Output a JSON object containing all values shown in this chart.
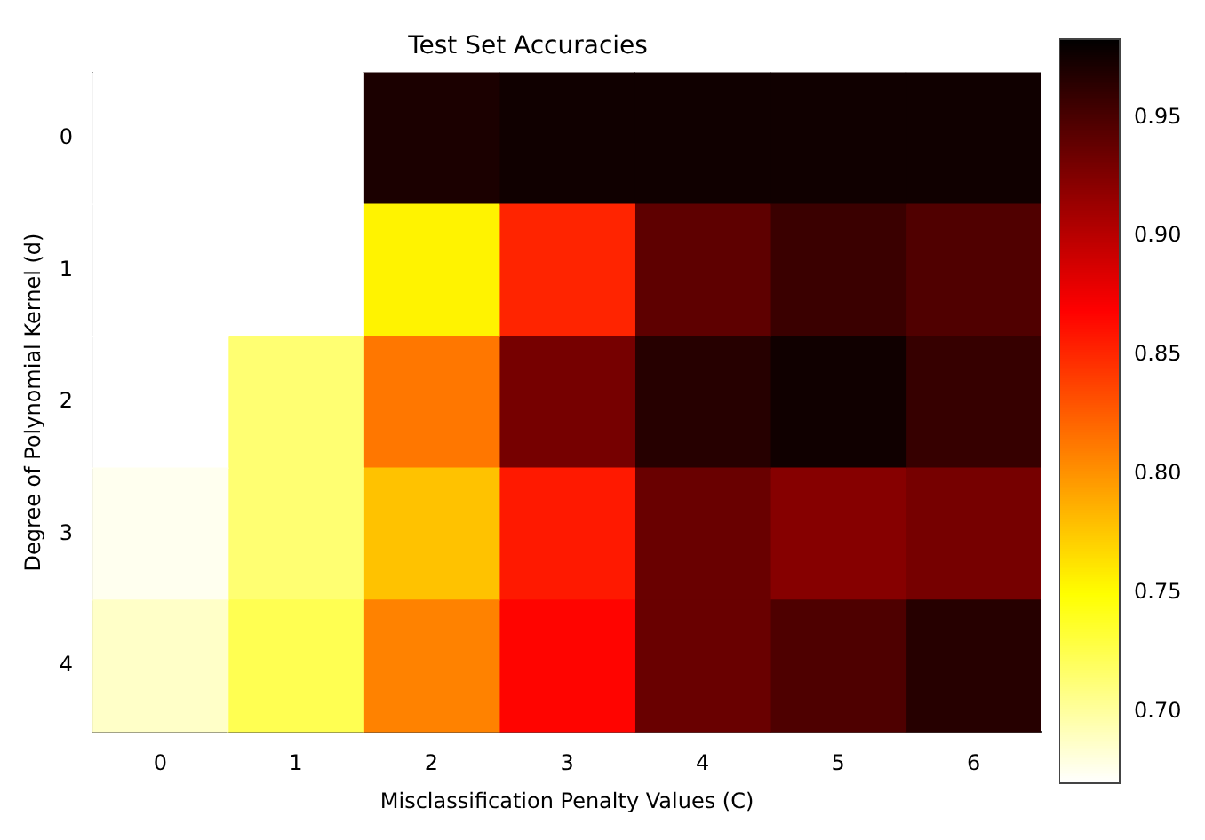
{
  "chart_data": {
    "type": "heatmap",
    "title": "Test Set Accuracies",
    "xlabel": "Misclassification Penalty Values (C)",
    "ylabel": "Degree of Polynomial Kernel (d)",
    "categories": [
      "0",
      "1",
      "2",
      "3",
      "4",
      "5",
      "6"
    ],
    "y_categories": [
      "0",
      "1",
      "2",
      "3",
      "4"
    ],
    "cells": [
      [
        0.67,
        0.67,
        0.971,
        0.976,
        0.976,
        0.976,
        0.976
      ],
      [
        0.67,
        0.67,
        0.755,
        0.852,
        0.941,
        0.957,
        0.947
      ],
      [
        0.67,
        0.714,
        0.813,
        0.93,
        0.966,
        0.976,
        0.959
      ],
      [
        0.675,
        0.714,
        0.778,
        0.857,
        0.936,
        0.923,
        0.93
      ],
      [
        0.687,
        0.724,
        0.808,
        0.867,
        0.936,
        0.948,
        0.966
      ]
    ],
    "clim": [
      0.67,
      0.983
    ],
    "cticks": [
      {
        "value": 0.7,
        "label": "0.70"
      },
      {
        "value": 0.75,
        "label": "0.75"
      },
      {
        "value": 0.8,
        "label": "0.80"
      },
      {
        "value": 0.85,
        "label": "0.85"
      },
      {
        "value": 0.9,
        "label": "0.90"
      },
      {
        "value": 0.95,
        "label": "0.95"
      }
    ]
  }
}
